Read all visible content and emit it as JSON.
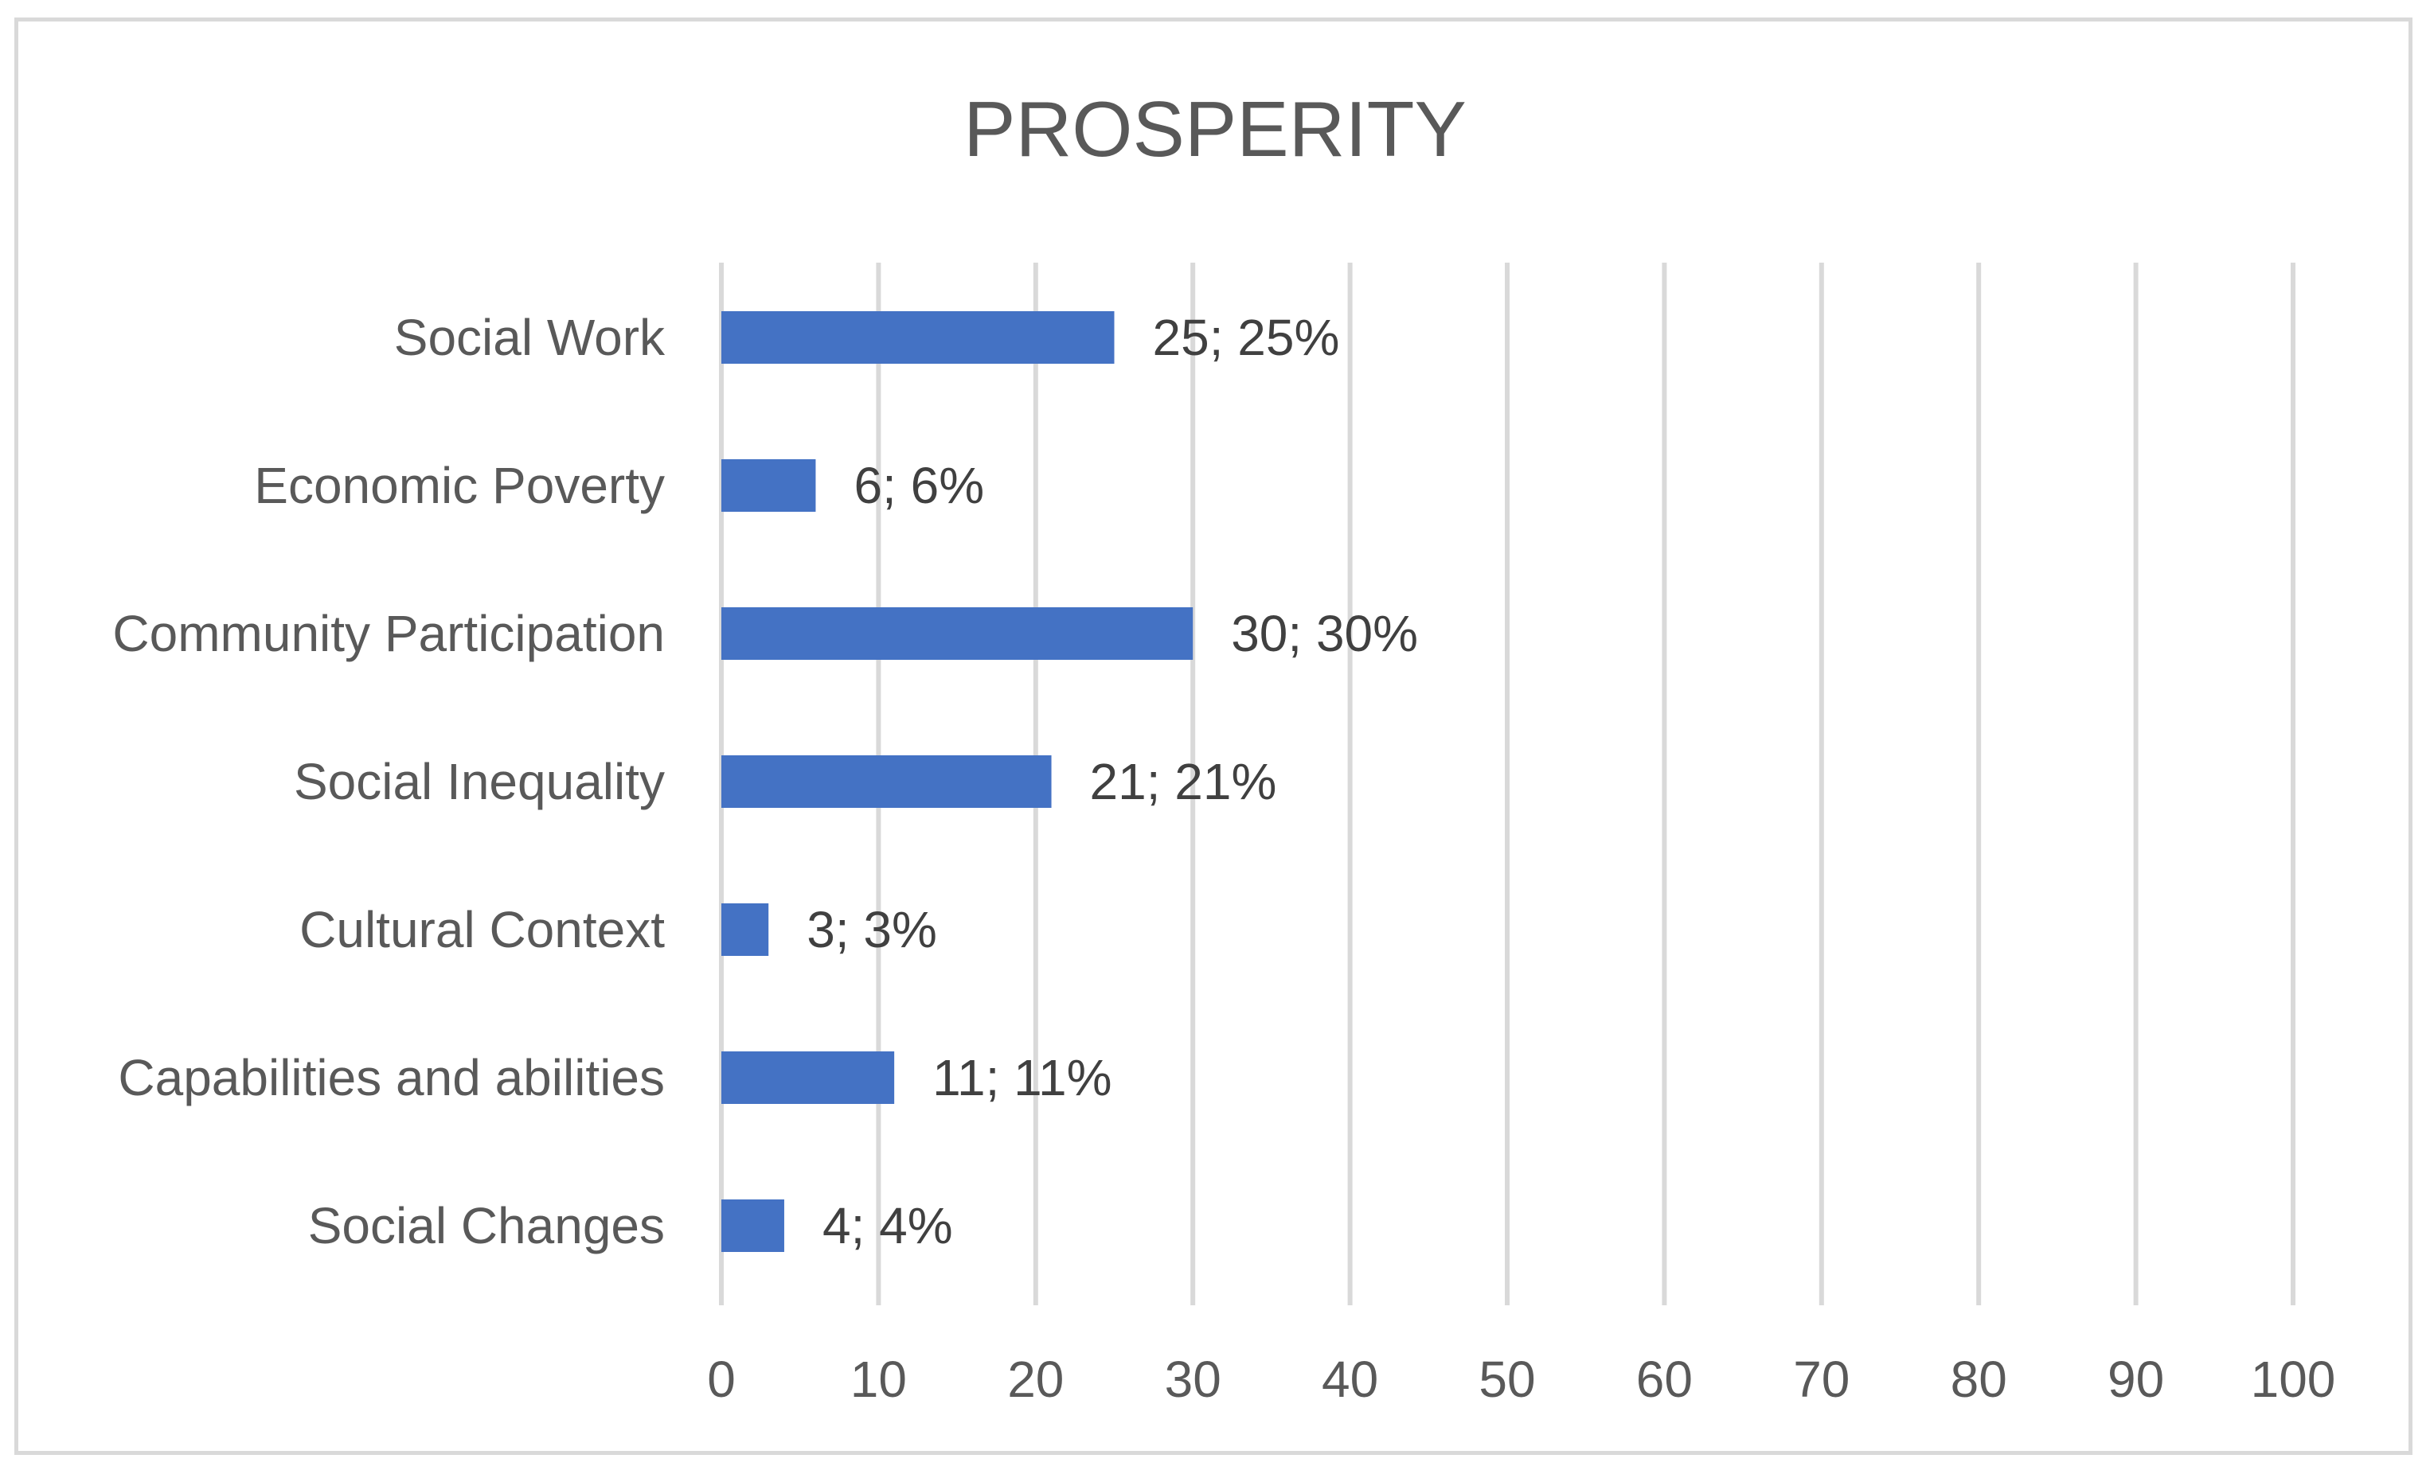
{
  "chart_data": {
    "type": "bar",
    "orientation": "horizontal",
    "title": "PROSPERITY",
    "categories": [
      "Social Work",
      "Economic Poverty",
      "Community Participation",
      "Social Inequality",
      "Cultural Context",
      "Capabilities and abilities",
      "Social Changes"
    ],
    "values": [
      25,
      6,
      30,
      21,
      3,
      11,
      4
    ],
    "data_labels": [
      "25; 25%",
      "6; 6%",
      "30; 30%",
      "21; 21%",
      "3; 3%",
      "11; 11%",
      "4; 4%"
    ],
    "xlim": [
      0,
      100
    ],
    "xticks": [
      0,
      10,
      20,
      30,
      40,
      50,
      60,
      70,
      80,
      90,
      100
    ],
    "xlabel": "",
    "ylabel": "",
    "grid": "vertical",
    "legend": "none",
    "bar_color": "#4472c4"
  }
}
